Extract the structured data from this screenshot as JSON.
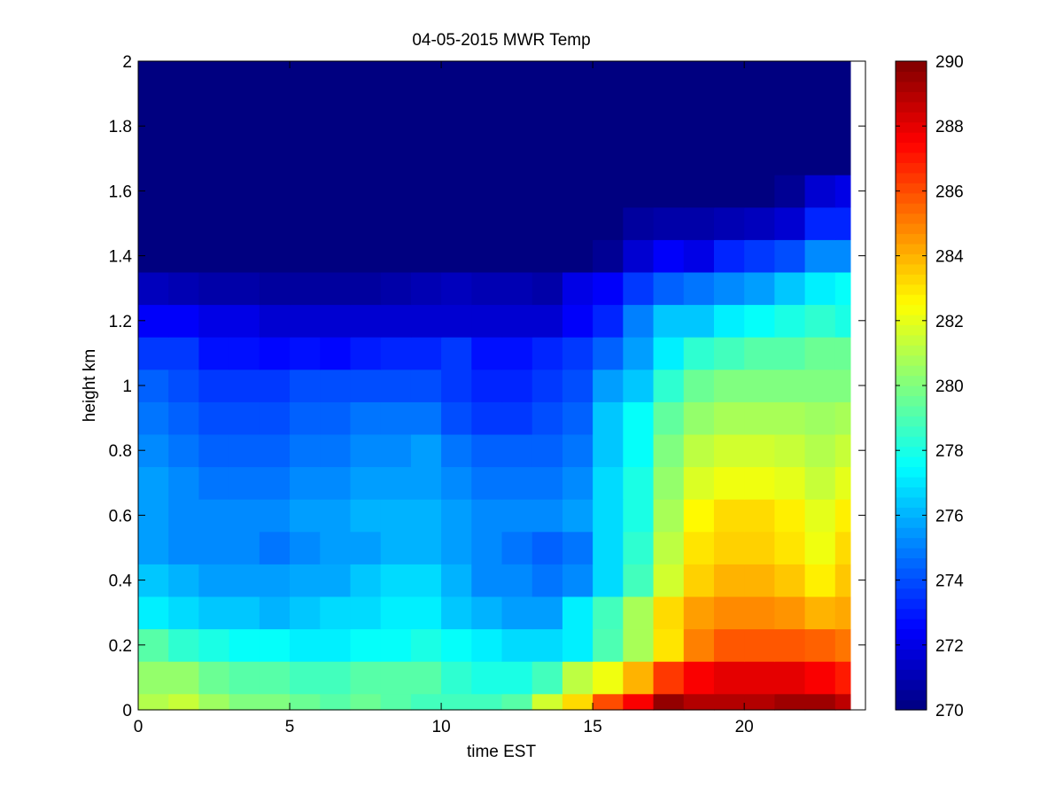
{
  "chart_data": {
    "type": "heatmap",
    "title": "04-05-2015 MWR Temp",
    "xlabel": "time EST",
    "ylabel": "height km",
    "xlim": [
      0,
      24
    ],
    "ylim": [
      0,
      2
    ],
    "x_ticks": [
      0,
      5,
      10,
      15,
      20
    ],
    "x_tick_labels": [
      "0",
      "5",
      "10",
      "15",
      "20"
    ],
    "y_ticks": [
      0,
      0.2,
      0.4,
      0.6,
      0.8,
      1.0,
      1.2,
      1.4,
      1.6,
      1.8,
      2.0
    ],
    "y_tick_labels": [
      "0",
      "0.2",
      "0.4",
      "0.6",
      "0.8",
      "1",
      "1.2",
      "1.4",
      "1.6",
      "1.8",
      "2"
    ],
    "colorbar": {
      "colormap": "jet",
      "range": [
        270,
        290
      ],
      "ticks": [
        270,
        272,
        274,
        276,
        278,
        280,
        282,
        284,
        286,
        288,
        290
      ],
      "tick_labels": [
        "270",
        "272",
        "274",
        "276",
        "278",
        "280",
        "282",
        "284",
        "286",
        "288",
        "290"
      ]
    },
    "grid": false,
    "x_cell_edges": [
      0,
      1,
      2,
      3,
      4,
      5,
      6,
      7,
      8,
      9,
      10,
      11,
      12,
      13,
      14,
      15,
      16,
      17,
      18,
      19,
      20,
      21,
      22,
      23,
      23.5
    ],
    "y_cell_edges": [
      0,
      0.05,
      0.15,
      0.25,
      0.35,
      0.45,
      0.55,
      0.65,
      0.75,
      0.85,
      0.95,
      1.05,
      1.15,
      1.25,
      1.35,
      1.45,
      1.55,
      1.65,
      2.0
    ],
    "z": [
      [
        281.0,
        281.4,
        280.6,
        280.0,
        280.0,
        279.6,
        279.2,
        279.6,
        279.2,
        278.8,
        278.8,
        278.8,
        279.2,
        281.6,
        283.2,
        286.0,
        287.6,
        289.6,
        289.0,
        289.0,
        289.0,
        289.4,
        289.4,
        288.8
      ],
      [
        280.4,
        280.4,
        279.6,
        279.2,
        279.2,
        278.8,
        278.8,
        279.2,
        279.2,
        279.2,
        278.4,
        278.0,
        278.0,
        278.8,
        281.2,
        282.2,
        284.0,
        286.4,
        287.6,
        288.0,
        288.0,
        288.0,
        287.6,
        287.0
      ],
      [
        279.2,
        278.4,
        278.0,
        277.6,
        277.6,
        277.2,
        277.2,
        277.6,
        277.6,
        278.0,
        277.6,
        277.2,
        276.8,
        276.8,
        277.2,
        279.0,
        280.8,
        283.0,
        285.0,
        285.8,
        285.8,
        285.8,
        285.6,
        285.2
      ],
      [
        277.2,
        276.8,
        276.4,
        276.4,
        276.0,
        276.4,
        276.8,
        276.8,
        277.2,
        277.2,
        276.4,
        276.0,
        275.6,
        275.6,
        277.2,
        278.8,
        280.8,
        283.2,
        284.4,
        284.8,
        284.8,
        284.6,
        284.0,
        284.2
      ],
      [
        276.4,
        276.0,
        275.6,
        275.6,
        275.6,
        275.8,
        275.8,
        276.4,
        276.8,
        276.8,
        276.0,
        275.2,
        275.2,
        274.8,
        275.2,
        276.8,
        278.8,
        281.6,
        283.4,
        284.0,
        284.0,
        283.6,
        282.8,
        283.6
      ],
      [
        275.6,
        275.2,
        275.2,
        275.2,
        274.8,
        275.2,
        275.6,
        275.6,
        276.0,
        276.0,
        275.6,
        275.2,
        274.8,
        274.4,
        274.8,
        276.8,
        278.4,
        281.2,
        283.0,
        283.4,
        283.4,
        283.0,
        282.2,
        283.2
      ],
      [
        275.6,
        275.2,
        275.2,
        275.2,
        275.2,
        275.6,
        275.6,
        276.0,
        276.0,
        276.0,
        275.6,
        275.2,
        275.2,
        275.2,
        275.6,
        276.8,
        278.0,
        280.8,
        282.6,
        283.2,
        283.2,
        282.8,
        282.0,
        282.8
      ],
      [
        275.6,
        275.2,
        274.8,
        274.8,
        274.8,
        275.2,
        275.2,
        275.6,
        275.6,
        275.6,
        275.2,
        274.8,
        274.8,
        274.8,
        275.2,
        276.8,
        278.0,
        280.4,
        281.8,
        282.2,
        282.2,
        282.0,
        281.4,
        282.0
      ],
      [
        275.2,
        274.8,
        274.4,
        274.4,
        274.4,
        274.8,
        274.8,
        275.2,
        275.2,
        275.6,
        274.8,
        274.4,
        274.4,
        274.4,
        274.8,
        276.4,
        277.6,
        280.0,
        281.2,
        281.6,
        281.6,
        281.4,
        281.0,
        281.4
      ],
      [
        274.8,
        274.4,
        274.0,
        274.0,
        274.0,
        274.4,
        274.4,
        274.8,
        274.8,
        274.8,
        274.0,
        273.6,
        273.6,
        274.0,
        274.4,
        276.4,
        277.6,
        279.4,
        280.4,
        280.8,
        280.8,
        280.8,
        280.6,
        280.8
      ],
      [
        274.4,
        274.0,
        273.6,
        273.6,
        273.6,
        274.0,
        274.0,
        274.0,
        274.0,
        274.0,
        273.6,
        273.2,
        273.2,
        273.6,
        274.0,
        275.6,
        276.4,
        278.4,
        279.6,
        280.0,
        280.0,
        280.0,
        280.0,
        280.0
      ],
      [
        273.6,
        273.6,
        272.8,
        272.8,
        272.6,
        272.8,
        272.6,
        273.0,
        273.2,
        273.2,
        273.6,
        272.8,
        272.8,
        273.2,
        273.6,
        274.4,
        275.6,
        277.2,
        278.4,
        278.8,
        279.2,
        279.2,
        279.6,
        279.6
      ],
      [
        272.4,
        272.4,
        272.0,
        272.0,
        271.6,
        271.6,
        271.6,
        271.6,
        271.6,
        271.6,
        271.6,
        271.6,
        271.6,
        271.6,
        272.4,
        273.2,
        275.0,
        276.4,
        276.4,
        277.2,
        277.6,
        278.0,
        278.4,
        278.0
      ],
      [
        271.2,
        271.0,
        270.8,
        270.8,
        270.6,
        270.6,
        270.6,
        270.6,
        270.8,
        271.0,
        271.2,
        271.0,
        271.0,
        270.8,
        272.0,
        272.4,
        273.6,
        274.4,
        274.8,
        275.2,
        275.6,
        276.4,
        277.2,
        277.6
      ],
      [
        270.0,
        270.0,
        270.0,
        270.0,
        270.0,
        270.0,
        270.0,
        270.0,
        270.0,
        270.0,
        270.0,
        270.0,
        270.0,
        270.0,
        270.0,
        270.4,
        271.6,
        272.4,
        272.0,
        273.2,
        273.6,
        274.0,
        275.2,
        275.2
      ],
      [
        270.0,
        270.0,
        270.0,
        270.0,
        270.0,
        270.0,
        270.0,
        270.0,
        270.0,
        270.0,
        270.0,
        270.0,
        270.0,
        270.0,
        270.0,
        270.0,
        270.6,
        270.8,
        270.8,
        271.0,
        271.2,
        271.6,
        273.2,
        273.2
      ],
      [
        270.0,
        270.0,
        270.0,
        270.0,
        270.0,
        270.0,
        270.0,
        270.0,
        270.0,
        270.0,
        270.0,
        270.0,
        270.0,
        270.0,
        270.0,
        270.0,
        270.0,
        270.0,
        270.0,
        270.0,
        270.0,
        270.4,
        271.6,
        272.0
      ],
      [
        270.0,
        270.0,
        270.0,
        270.0,
        270.0,
        270.0,
        270.0,
        270.0,
        270.0,
        270.0,
        270.0,
        270.0,
        270.0,
        270.0,
        270.0,
        270.0,
        270.0,
        270.0,
        270.0,
        270.0,
        270.0,
        270.0,
        270.0,
        270.0
      ]
    ]
  }
}
